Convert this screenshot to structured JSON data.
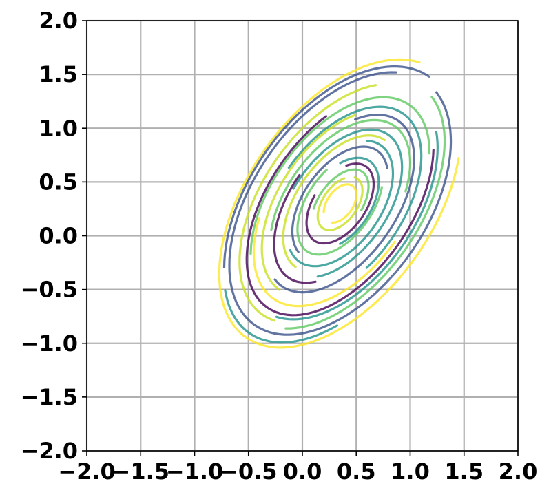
{
  "chart_data": {
    "type": "line",
    "title": "",
    "xlabel": "",
    "ylabel": "",
    "xlim": [
      -2.0,
      2.0
    ],
    "ylim": [
      -2.0,
      2.0
    ],
    "grid": true,
    "x_ticks": [
      -2.0,
      -1.5,
      -1.0,
      -0.5,
      0.0,
      0.5,
      1.0,
      1.5,
      2.0
    ],
    "x_tick_labels": [
      "−2.0",
      "−1.5",
      "−1.0",
      "−0.5",
      "0.0",
      "0.5",
      "1.0",
      "1.5",
      "2.0"
    ],
    "y_ticks": [
      2.0,
      1.5,
      1.0,
      0.5,
      0.0,
      -0.5,
      -1.0,
      -1.5,
      -2.0
    ],
    "y_tick_labels": [
      "2.0",
      "1.5",
      "1.0",
      "0.5",
      "0.0",
      "−0.5",
      "−1.0",
      "−1.5",
      "−2.0"
    ],
    "colormap": [
      "#440154",
      "#3b528b",
      "#21918c",
      "#5ec962",
      "#c8e020",
      "#fde725"
    ],
    "center": [
      0.35,
      0.3
    ],
    "tilt_degrees": 55,
    "series": [
      {
        "color": "#fde725",
        "a": 1.52,
        "b": 0.86,
        "start_deg": 10,
        "span_deg": 300
      },
      {
        "color": "#3b528b",
        "a": 1.44,
        "b": 0.84,
        "start_deg": 0,
        "span_deg": 140
      },
      {
        "color": "#21918c",
        "a": 1.47,
        "b": 0.82,
        "start_deg": 150,
        "span_deg": 80
      },
      {
        "color": "#3b528b",
        "a": 1.38,
        "b": 0.8,
        "start_deg": 20,
        "span_deg": 330
      },
      {
        "color": "#5ec962",
        "a": 1.32,
        "b": 0.74,
        "start_deg": 200,
        "span_deg": 150
      },
      {
        "color": "#c8e020",
        "a": 1.26,
        "b": 0.72,
        "start_deg": 30,
        "span_deg": 160
      },
      {
        "color": "#21918c",
        "a": 1.22,
        "b": 0.7,
        "start_deg": 190,
        "span_deg": 140
      },
      {
        "color": "#440154",
        "a": 1.18,
        "b": 0.66,
        "start_deg": 60,
        "span_deg": 260
      },
      {
        "color": "#5ec962",
        "a": 1.12,
        "b": 0.64,
        "start_deg": 320,
        "span_deg": 180
      },
      {
        "color": "#fde725",
        "a": 1.08,
        "b": 0.62,
        "start_deg": 120,
        "span_deg": 150
      },
      {
        "color": "#21918c",
        "a": 1.02,
        "b": 0.58,
        "start_deg": 250,
        "span_deg": 200
      },
      {
        "color": "#c8e020",
        "a": 0.98,
        "b": 0.56,
        "start_deg": 40,
        "span_deg": 140
      },
      {
        "color": "#3b528b",
        "a": 0.94,
        "b": 0.52,
        "start_deg": 170,
        "span_deg": 230
      },
      {
        "color": "#5ec962",
        "a": 0.88,
        "b": 0.5,
        "start_deg": 300,
        "span_deg": 190
      },
      {
        "color": "#440154",
        "a": 0.84,
        "b": 0.46,
        "start_deg": 90,
        "span_deg": 120
      },
      {
        "color": "#21918c",
        "a": 0.78,
        "b": 0.44,
        "start_deg": 210,
        "span_deg": 250
      },
      {
        "color": "#c8e020",
        "a": 0.72,
        "b": 0.4,
        "start_deg": 0,
        "span_deg": 180
      },
      {
        "color": "#21918c",
        "a": 0.66,
        "b": 0.38,
        "start_deg": 160,
        "span_deg": 220
      },
      {
        "color": "#3b528b",
        "a": 0.6,
        "b": 0.34,
        "start_deg": 330,
        "span_deg": 200
      },
      {
        "color": "#5ec962",
        "a": 0.54,
        "b": 0.3,
        "start_deg": 70,
        "span_deg": 240
      },
      {
        "color": "#21918c",
        "a": 0.48,
        "b": 0.28,
        "start_deg": 230,
        "span_deg": 180
      },
      {
        "color": "#440154",
        "a": 0.42,
        "b": 0.24,
        "start_deg": 100,
        "span_deg": 300
      },
      {
        "color": "#5ec962",
        "a": 0.36,
        "b": 0.2,
        "start_deg": 280,
        "span_deg": 200
      },
      {
        "color": "#c8e020",
        "a": 0.28,
        "b": 0.16,
        "start_deg": 40,
        "span_deg": 330
      },
      {
        "color": "#fde725",
        "a": 0.2,
        "b": 0.12,
        "start_deg": 200,
        "span_deg": 300
      }
    ]
  }
}
